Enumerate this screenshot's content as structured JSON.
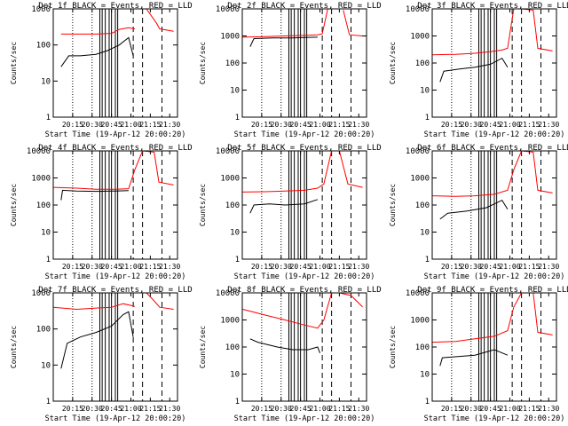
{
  "figure": {
    "background": "#ffffff",
    "axis_color": "#000000",
    "events_color": "#000000",
    "lld_color": "#ff0000"
  },
  "chart_data": [
    {
      "type": "line",
      "title": "Det 1f BLACK = Events, RED = LLD",
      "xlabel": "Start Time (19-Apr-12 20:00:20)",
      "ylabel": "Counts/sec",
      "x_ticks": [
        "20:15",
        "20:30",
        "20:45",
        "21:00",
        "21:15",
        "21:30"
      ],
      "y_ticks": [
        "1",
        "10",
        "100",
        "1000"
      ],
      "ylim": [
        1,
        1000
      ],
      "yscale": "log",
      "xlim": [
        20.0,
        21.6
      ],
      "series": [
        {
          "role": "events",
          "segments": [
            {
              "x": [
                20.1,
                20.2,
                20.35,
                20.55,
                20.7,
                20.85,
                20.97,
                21.03
              ],
              "y": [
                25,
                50,
                50,
                55,
                70,
                100,
                160,
                50
              ]
            }
          ]
        },
        {
          "role": "lld",
          "segments": [
            {
              "x": [
                20.1,
                20.3,
                20.55,
                20.75,
                20.85,
                20.97,
                21.05
              ],
              "y": [
                200,
                200,
                200,
                210,
                270,
                300,
                280
              ]
            },
            {
              "x": [
                21.2,
                21.33,
                21.37,
                21.55
              ],
              "y": [
                1000,
                400,
                280,
                240
              ]
            }
          ]
        }
      ]
    },
    {
      "type": "line",
      "title": "Det 2f BLACK = Events, RED = LLD",
      "xlabel": "Start Time (19-Apr-12 20:00:20)",
      "ylabel": "Counts/sec",
      "x_ticks": [
        "20:15",
        "20:30",
        "20:45",
        "21:00",
        "21:15",
        "21:30"
      ],
      "y_ticks": [
        "1",
        "10",
        "100",
        "1000",
        "10000"
      ],
      "ylim": [
        1,
        10000
      ],
      "yscale": "log",
      "xlim": [
        20.0,
        21.6
      ],
      "series": [
        {
          "role": "events",
          "segments": [
            {
              "x": [
                20.1,
                20.15,
                20.4,
                20.65,
                20.8,
                20.97
              ],
              "y": [
                400,
                800,
                850,
                850,
                880,
                900
              ]
            }
          ]
        },
        {
          "role": "lld",
          "segments": [
            {
              "x": [
                20.0,
                20.3,
                20.55,
                20.8,
                20.97,
                21.03,
                21.1,
                21.2
              ],
              "y": [
                900,
                950,
                1000,
                1050,
                1100,
                1200,
                10000,
                10000
              ]
            },
            {
              "x": [
                21.3,
                21.38,
                21.55
              ],
              "y": [
                9000,
                1100,
                1000
              ]
            }
          ]
        }
      ]
    },
    {
      "type": "line",
      "title": "Det 3f BLACK = Events, RED = LLD",
      "xlabel": "Start Time (19-Apr-12 20:00:20)",
      "ylabel": "Counts/sec",
      "x_ticks": [
        "20:15",
        "20:30",
        "20:45",
        "21:00",
        "21:15",
        "21:30"
      ],
      "y_ticks": [
        "1",
        "10",
        "100",
        "1000",
        "10000"
      ],
      "ylim": [
        1,
        10000
      ],
      "yscale": "log",
      "xlim": [
        20.0,
        21.6
      ],
      "series": [
        {
          "role": "events",
          "segments": [
            {
              "x": [
                20.1,
                20.15,
                20.35,
                20.55,
                20.75,
                20.9,
                20.97
              ],
              "y": [
                20,
                50,
                60,
                70,
                90,
                150,
                70
              ]
            }
          ]
        },
        {
          "role": "lld",
          "segments": [
            {
              "x": [
                20.0,
                20.3,
                20.55,
                20.75,
                20.9,
                20.97,
                21.05,
                21.15,
                21.3,
                21.36,
                21.55
              ],
              "y": [
                200,
                210,
                230,
                260,
                300,
                350,
                10000,
                10000,
                9000,
                350,
                280
              ]
            }
          ]
        }
      ]
    },
    {
      "type": "line",
      "title": "Det 4f BLACK = Events, RED = LLD",
      "xlabel": "Start Time (19-Apr-12 20:00:20)",
      "ylabel": "Counts/sec",
      "x_ticks": [
        "20:15",
        "20:30",
        "20:45",
        "21:00",
        "21:15",
        "21:30"
      ],
      "y_ticks": [
        "1",
        "10",
        "100",
        "1000",
        "10000"
      ],
      "ylim": [
        1,
        10000
      ],
      "yscale": "log",
      "xlim": [
        20.0,
        21.6
      ],
      "series": [
        {
          "role": "events",
          "segments": [
            {
              "x": [
                20.1,
                20.12,
                20.3,
                20.55,
                20.8,
                20.97
              ],
              "y": [
                150,
                350,
                330,
                320,
                330,
                340
              ]
            }
          ]
        },
        {
          "role": "lld",
          "segments": [
            {
              "x": [
                20.0,
                20.3,
                20.55,
                20.8,
                20.97,
                21.05,
                21.15,
                21.3,
                21.36,
                21.55
              ],
              "y": [
                450,
                420,
                380,
                380,
                400,
                2000,
                10000,
                9000,
                700,
                550
              ]
            }
          ]
        }
      ]
    },
    {
      "type": "line",
      "title": "Det 5f BLACK = Events, RED = LLD",
      "xlabel": "Start Time (19-Apr-12 20:00:20)",
      "ylabel": "Counts/sec",
      "x_ticks": [
        "20:15",
        "20:30",
        "20:45",
        "21:00",
        "21:15",
        "21:30"
      ],
      "y_ticks": [
        "1",
        "10",
        "100",
        "1000",
        "10000"
      ],
      "ylim": [
        1,
        10000
      ],
      "yscale": "log",
      "xlim": [
        20.0,
        21.6
      ],
      "series": [
        {
          "role": "events",
          "segments": [
            {
              "x": [
                20.1,
                20.15,
                20.35,
                20.55,
                20.8,
                20.97
              ],
              "y": [
                50,
                100,
                110,
                100,
                110,
                160
              ]
            }
          ]
        },
        {
          "role": "lld",
          "segments": [
            {
              "x": [
                20.0,
                20.3,
                20.55,
                20.8,
                20.97,
                21.05,
                21.15
              ],
              "y": [
                300,
                310,
                330,
                350,
                420,
                600,
                10000
              ]
            },
            {
              "x": [
                21.25,
                21.36,
                21.55
              ],
              "y": [
                10000,
                600,
                450
              ]
            }
          ]
        }
      ]
    },
    {
      "type": "line",
      "title": "Det 6f BLACK = Events, RED = LLD",
      "xlabel": "Start Time (19-Apr-12 20:00:20)",
      "ylabel": "Counts/sec",
      "x_ticks": [
        "20:15",
        "20:30",
        "20:45",
        "21:00",
        "21:15",
        "21:30"
      ],
      "y_ticks": [
        "1",
        "10",
        "100",
        "1000",
        "10000"
      ],
      "ylim": [
        1,
        10000
      ],
      "yscale": "log",
      "xlim": [
        20.0,
        21.6
      ],
      "series": [
        {
          "role": "events",
          "segments": [
            {
              "x": [
                20.1,
                20.2,
                20.45,
                20.7,
                20.9,
                20.97
              ],
              "y": [
                30,
                50,
                60,
                80,
                150,
                70
              ]
            }
          ]
        },
        {
          "role": "lld",
          "segments": [
            {
              "x": [
                20.0,
                20.3,
                20.55,
                20.8,
                20.97,
                21.05,
                21.15,
                21.3,
                21.36,
                21.55
              ],
              "y": [
                220,
                210,
                220,
                250,
                350,
                2000,
                10000,
                9000,
                350,
                280
              ]
            }
          ]
        }
      ]
    },
    {
      "type": "line",
      "title": "Det 7f BLACK = Events, RED = LLD",
      "xlabel": "Start Time (19-Apr-12 20:00:20)",
      "ylabel": "Counts/sec",
      "x_ticks": [
        "20:15",
        "20:30",
        "20:45",
        "21:00",
        "21:15",
        "21:30"
      ],
      "y_ticks": [
        "1",
        "10",
        "100",
        "1000"
      ],
      "ylim": [
        1,
        1000
      ],
      "yscale": "log",
      "xlim": [
        20.0,
        21.6
      ],
      "series": [
        {
          "role": "events",
          "segments": [
            {
              "x": [
                20.1,
                20.18,
                20.35,
                20.55,
                20.75,
                20.9,
                20.97,
                21.03
              ],
              "y": [
                8,
                40,
                60,
                80,
                120,
                250,
                300,
                60
              ]
            }
          ]
        },
        {
          "role": "lld",
          "segments": [
            {
              "x": [
                20.0,
                20.3,
                20.55,
                20.75,
                20.9,
                21.0,
                21.05
              ],
              "y": [
                400,
                350,
                380,
                400,
                500,
                450,
                420
              ]
            },
            {
              "x": [
                21.2,
                21.3,
                21.37,
                21.55
              ],
              "y": [
                1000,
                600,
                400,
                350
              ]
            }
          ]
        }
      ]
    },
    {
      "type": "line",
      "title": "Det 8f BLACK = Events, RED = LLD",
      "xlabel": "Start Time (19-Apr-12 20:00:20)",
      "ylabel": "Counts/sec",
      "x_ticks": [
        "20:15",
        "20:30",
        "20:45",
        "21:00",
        "21:15",
        "21:30"
      ],
      "y_ticks": [
        "1",
        "10",
        "100",
        "1000",
        "10000"
      ],
      "ylim": [
        1,
        10000
      ],
      "yscale": "log",
      "xlim": [
        20.0,
        21.6
      ],
      "series": [
        {
          "role": "events",
          "segments": [
            {
              "x": [
                20.1,
                20.2,
                20.45,
                20.65,
                20.85,
                20.97,
                21.0
              ],
              "y": [
                200,
                150,
                100,
                80,
                80,
                100,
                60
              ]
            }
          ]
        },
        {
          "role": "lld",
          "segments": [
            {
              "x": [
                20.0,
                20.3,
                20.55,
                20.8,
                20.97,
                21.05,
                21.15
              ],
              "y": [
                2500,
                1500,
                1000,
                650,
                500,
                1000,
                10000
              ]
            },
            {
              "x": [
                21.25,
                21.4,
                21.55
              ],
              "y": [
                10000,
                8000,
                3000
              ]
            }
          ]
        }
      ]
    },
    {
      "type": "line",
      "title": "Det 9f BLACK = Events, RED = LLD",
      "xlabel": "Start Time (19-Apr-12 20:00:20)",
      "ylabel": "Counts/sec",
      "x_ticks": [
        "20:15",
        "20:30",
        "20:45",
        "21:00",
        "21:15",
        "21:30"
      ],
      "y_ticks": [
        "1",
        "10",
        "100",
        "1000",
        "10000"
      ],
      "ylim": [
        1,
        10000
      ],
      "yscale": "log",
      "xlim": [
        20.0,
        21.6
      ],
      "series": [
        {
          "role": "events",
          "segments": [
            {
              "x": [
                20.1,
                20.13,
                20.35,
                20.55,
                20.8,
                20.97
              ],
              "y": [
                20,
                40,
                45,
                50,
                80,
                50
              ]
            }
          ]
        },
        {
          "role": "lld",
          "segments": [
            {
              "x": [
                20.0,
                20.3,
                20.55,
                20.8,
                20.97,
                21.05,
                21.15,
                21.3,
                21.36,
                21.55
              ],
              "y": [
                150,
                160,
                200,
                250,
                400,
                3000,
                10000,
                10000,
                350,
                280
              ]
            }
          ]
        }
      ]
    }
  ],
  "panel_markers": {
    "dotted_x": [
      20.25,
      20.5
    ],
    "solid_x": [
      20.6,
      20.63,
      20.67,
      20.72,
      20.75,
      20.8,
      20.83
    ],
    "dashed_x": [
      21.03,
      21.15,
      21.4
    ]
  }
}
